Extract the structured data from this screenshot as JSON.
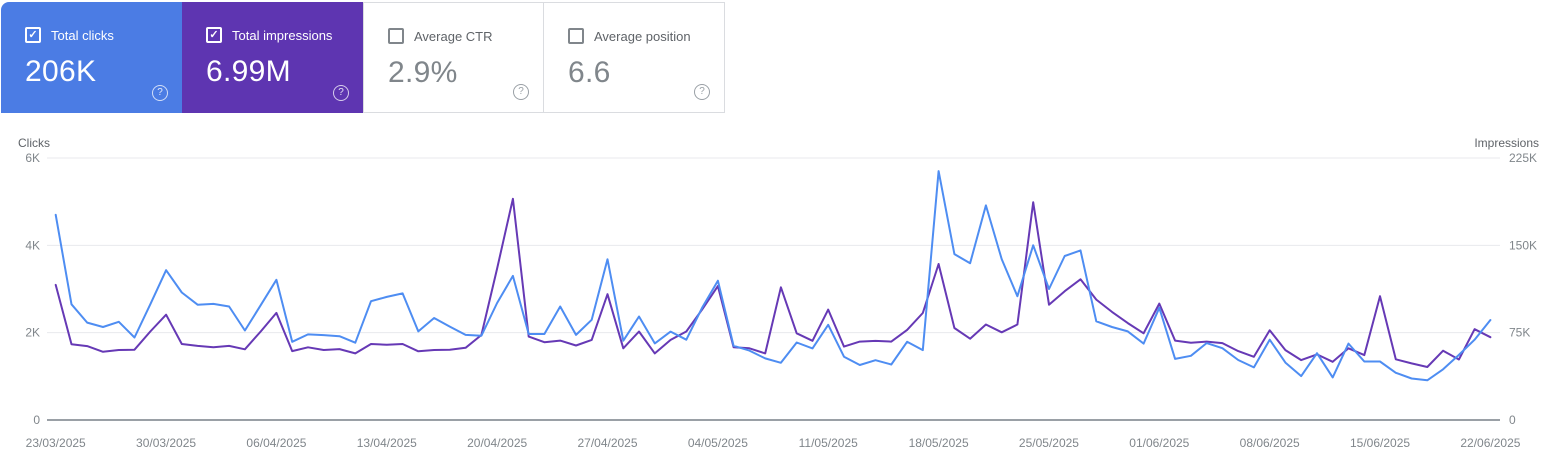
{
  "cards": [
    {
      "label": "Total clicks",
      "value": "206K",
      "checked": true,
      "bg": "#4b7ce4",
      "text_color": "#ffffff",
      "help_glyph": "?"
    },
    {
      "label": "Total impressions",
      "value": "6.99M",
      "checked": true,
      "bg": "#5e35b1",
      "text_color": "#ffffff",
      "help_glyph": "?"
    },
    {
      "label": "Average CTR",
      "value": "2.9%",
      "checked": false,
      "bg": "#ffffff",
      "text_color": "#80868b",
      "help_glyph": "?"
    },
    {
      "label": "Average position",
      "value": "6.6",
      "checked": false,
      "bg": "#ffffff",
      "text_color": "#80868b",
      "help_glyph": "?"
    }
  ],
  "chart_data": {
    "type": "line",
    "x_unit": "day",
    "x_start": "23/03/2025",
    "x_end": "22/06/2025",
    "x_tick_labels": [
      "23/03/2025",
      "30/03/2025",
      "06/04/2025",
      "13/04/2025",
      "20/04/2025",
      "27/04/2025",
      "04/05/2025",
      "11/05/2025",
      "18/05/2025",
      "25/05/2025",
      "01/06/2025",
      "08/06/2025",
      "15/06/2025",
      "22/06/2025"
    ],
    "y_left": {
      "title": "Clicks",
      "ticks": [
        "6K",
        "4K",
        "2K",
        "0"
      ],
      "max": 6000,
      "min": 0
    },
    "y_right": {
      "title": "Impressions",
      "ticks": [
        "225K",
        "150K",
        "75K",
        "0"
      ],
      "max": 225000,
      "min": 0
    },
    "grid": "horizontal",
    "legend": "none",
    "series": [
      {
        "name": "Total clicks",
        "axis": "left",
        "color": "#4e8df2",
        "values": [
          4700,
          2650,
          2230,
          2130,
          2250,
          1890,
          2650,
          3430,
          2920,
          2640,
          2660,
          2600,
          2050,
          2630,
          3210,
          1790,
          1960,
          1945,
          1920,
          1770,
          2720,
          2820,
          2900,
          2030,
          2335,
          2140,
          1950,
          1930,
          2680,
          3300,
          1970,
          1970,
          2600,
          1950,
          2295,
          3680,
          1815,
          2370,
          1755,
          2025,
          1840,
          2570,
          3190,
          1700,
          1590,
          1410,
          1310,
          1775,
          1640,
          2180,
          1450,
          1260,
          1370,
          1270,
          1790,
          1600,
          5700,
          3800,
          3590,
          4915,
          3685,
          2835,
          4000,
          3000,
          3755,
          3885,
          2260,
          2130,
          2030,
          1750,
          2570,
          1400,
          1470,
          1760,
          1645,
          1375,
          1205,
          1840,
          1315,
          1005,
          1530,
          975,
          1750,
          1340,
          1340,
          1080,
          950,
          910,
          1160,
          1490,
          1840,
          2290
        ]
      },
      {
        "name": "Total impressions",
        "axis": "right",
        "color": "#6639b5",
        "values": [
          116000,
          65000,
          63500,
          58600,
          60100,
          60400,
          76000,
          90400,
          65300,
          63600,
          62400,
          63600,
          60700,
          76000,
          92000,
          59200,
          62400,
          60100,
          60900,
          57200,
          65300,
          64700,
          65300,
          59000,
          60100,
          60400,
          62000,
          73000,
          130000,
          190000,
          71600,
          66800,
          68200,
          64000,
          68800,
          108000,
          61600,
          76000,
          57200,
          68800,
          76000,
          94800,
          115000,
          62400,
          61600,
          57200,
          114000,
          74500,
          68000,
          94800,
          63000,
          67300,
          67900,
          67300,
          77400,
          91900,
          134000,
          79000,
          69800,
          82000,
          75300,
          82000,
          187000,
          99000,
          110600,
          120800,
          103400,
          92800,
          83200,
          74500,
          100000,
          68200,
          66400,
          67300,
          66000,
          59200,
          54300,
          77000,
          60000,
          51400,
          56300,
          50000,
          61600,
          55700,
          106300,
          52100,
          48600,
          45500,
          59500,
          52000,
          78000,
          71100
        ]
      }
    ]
  },
  "colors": {
    "grid": "#e8eaed",
    "baseline": "#9aa0a6",
    "tick_text": "#80868b",
    "axis_title_text": "#5f6368",
    "card_border": "#dadce0"
  }
}
